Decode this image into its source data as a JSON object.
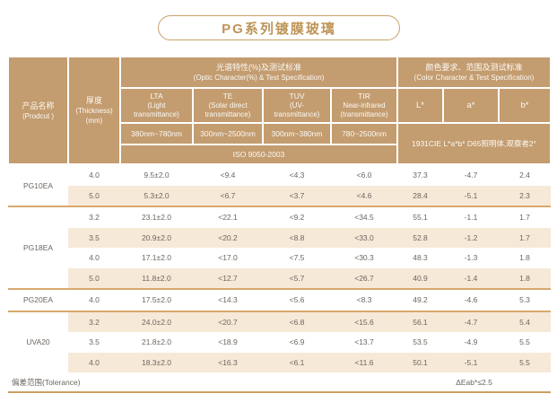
{
  "title": "PG系列镀膜玻璃",
  "header": {
    "product": {
      "zh": "产品名称",
      "en": "(Prodcut )"
    },
    "thickness": {
      "zh": "厚度",
      "en": "(Thickness)",
      "unit": "(mm)"
    },
    "optic_group": {
      "zh": "光谱特性(%)及测试标准",
      "en": "(Optic Character(%) & Test Specification)"
    },
    "color_group": {
      "zh": "颜色要求、范围及测试标准",
      "en": "(Color Character & Test Specification)"
    },
    "optic_columns": [
      {
        "abbr": "LTA",
        "desc": "(Light\ntransmittance)",
        "range": "380nm~780nm"
      },
      {
        "abbr": "TE",
        "desc": "(Solar direct\ntransmittance)",
        "range": "300nm~2500nm"
      },
      {
        "abbr": "TUV",
        "desc": "(UV-\ntransmittance)",
        "range": "300nm~380nm"
      },
      {
        "abbr": "TIR",
        "desc": "Near-infrared\n(transmittance)",
        "range": "780~2500nm"
      }
    ],
    "optic_standard": "ISO 9050-2003",
    "color_columns": [
      "L*",
      "a*",
      "b*"
    ],
    "color_standard": "1931CIE L*a*b* D65照明体,观察者2°"
  },
  "groups": [
    {
      "product": "PG10EA",
      "rows": [
        {
          "thickness": "4.0",
          "lta": "9.5±2.0",
          "te": "<9.4",
          "tuv": "<4.3",
          "tir": "<6.0",
          "l": "37.3",
          "a": "-4.7",
          "b": "2.4"
        },
        {
          "thickness": "5.0",
          "lta": "5.3±2.0",
          "te": "<6.7",
          "tuv": "<3.7",
          "tir": "<4.6",
          "l": "28.4",
          "a": "-5.1",
          "b": "2.3"
        }
      ]
    },
    {
      "product": "PG18EA",
      "rows": [
        {
          "thickness": "3.2",
          "lta": "23.1±2.0",
          "te": "<22.1",
          "tuv": "<9.2",
          "tir": "<34.5",
          "l": "55.1",
          "a": "-1.1",
          "b": "1.7"
        },
        {
          "thickness": "3.5",
          "lta": "20.9±2.0",
          "te": "<20.2",
          "tuv": "<8.8",
          "tir": "<33.0",
          "l": "52.8",
          "a": "-1.2",
          "b": "1.7"
        },
        {
          "thickness": "4.0",
          "lta": "17.1±2.0",
          "te": "<17.0",
          "tuv": "<7.5",
          "tir": "<30.3",
          "l": "48.3",
          "a": "-1.3",
          "b": "1.8"
        },
        {
          "thickness": "5.0",
          "lta": "11.8±2.0",
          "te": "<12.7",
          "tuv": "<5.7",
          "tir": "<26.7",
          "l": "40.9",
          "a": "-1.4",
          "b": "1.8"
        }
      ]
    },
    {
      "product": "PG20EA",
      "rows": [
        {
          "thickness": "4.0",
          "lta": "17.5±2.0",
          "te": "<14.3",
          "tuv": "<5.6",
          "tir": "<8.3",
          "l": "49.2",
          "a": "-4.6",
          "b": "5.3"
        }
      ]
    },
    {
      "product": "UVA20",
      "rows": [
        {
          "thickness": "3.2",
          "lta": "24.0±2.0",
          "te": "<20.7",
          "tuv": "<6.8",
          "tir": "<15.6",
          "l": "56.1",
          "a": "-4.7",
          "b": "5.4"
        },
        {
          "thickness": "3.5",
          "lta": "21.8±2.0",
          "te": "<18.9",
          "tuv": "<6.9",
          "tir": "<13.7",
          "l": "53.5",
          "a": "-4.9",
          "b": "5.5"
        },
        {
          "thickness": "4.0",
          "lta": "18.3±2.0",
          "te": "<16.3",
          "tuv": "<6.1",
          "tir": "<11.6",
          "l": "50.1",
          "a": "-5.1",
          "b": "5.5"
        }
      ]
    }
  ],
  "footer": {
    "tolerance_label": "偏差范围(Tolerance)",
    "delta_value": "ΔEab*≤2.5"
  },
  "colors": {
    "header_bg": "#C39C6F",
    "header_text": "#FCFAF5",
    "stripe_bg": "#F6E9D8",
    "group_line": "#D8A96C",
    "bottom_line": "#CD9F62",
    "title_gold": "#BE9458",
    "pill_border": "#C9A26A",
    "body_text": "#6C665F"
  }
}
